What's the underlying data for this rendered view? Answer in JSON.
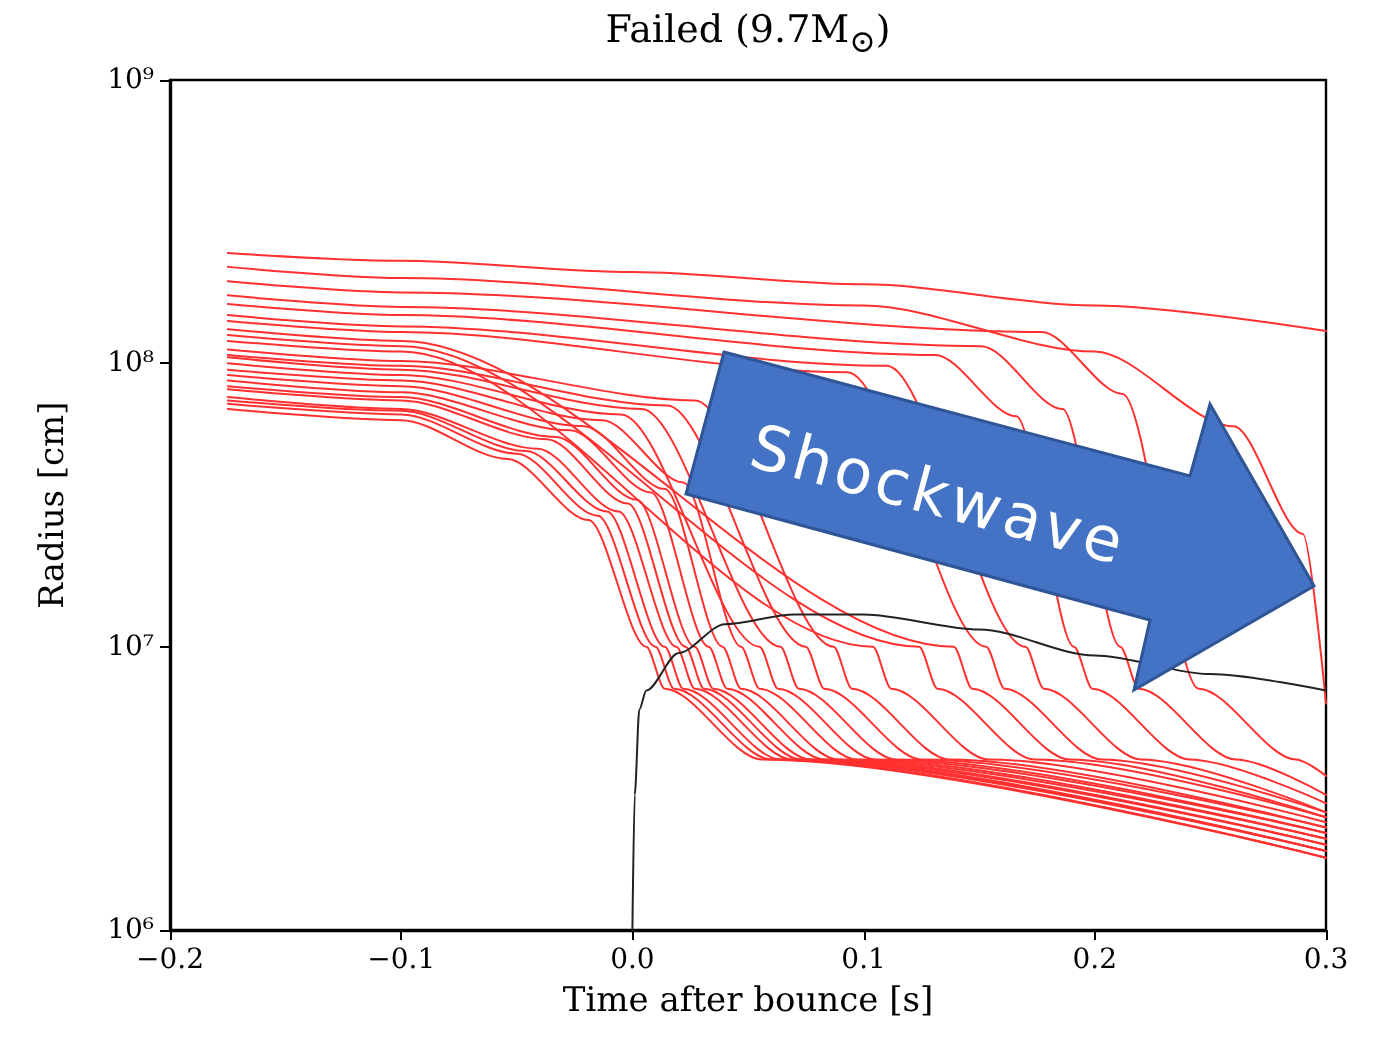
{
  "chart_data": {
    "type": "line",
    "title": "Failed (9.7M$_{⊙}$)",
    "xlabel": "Time after bounce [s]",
    "ylabel": "Radius [cm]",
    "log": "y",
    "xlim": [
      -0.2,
      0.3
    ],
    "xticks": [
      {
        "value": -0.2,
        "label": "−0.2"
      },
      {
        "value": -0.1,
        "label": "−0.1"
      },
      {
        "value": 0,
        "label": "0.0"
      },
      0.1,
      0.2,
      0.3
    ],
    "ylim": [
      1000000,
      1000000000
    ],
    "yticks": [
      {
        "value": 1000000,
        "label": "10⁶"
      },
      {
        "value": 10000000,
        "label": "10⁷"
      },
      {
        "value": 100000000,
        "label": "10⁸"
      },
      {
        "value": 1000000000,
        "label": "10⁹"
      }
    ],
    "annotations": [
      "Shockwave"
    ],
    "series": [
      {
        "color": "#ff3030",
        "x": [
          -0.175,
          -0.1,
          -0.054,
          -0.019,
          0.006,
          0.014,
          0.056,
          0.3
        ],
        "values": [
          69000000,
          63000000,
          46000000,
          28000000,
          10000000,
          7100000,
          4000000,
          1800000
        ]
      },
      {
        "color": "#ff3030",
        "x": [
          -0.175,
          -0.1,
          -0.05,
          -0.015,
          0.01,
          0.018,
          0.06,
          0.3
        ],
        "values": [
          72000000,
          66000000,
          48000000,
          29000000,
          10000000,
          7100000,
          4000000,
          1800000
        ]
      },
      {
        "color": "#ff3030",
        "x": [
          -0.175,
          -0.1,
          -0.046,
          -0.011,
          0.014,
          0.022,
          0.064,
          0.3
        ],
        "values": [
          74000000,
          68000000,
          49000000,
          30000000,
          10000000,
          7100000,
          4000000,
          1900000
        ]
      },
      {
        "color": "#ff3030",
        "x": [
          -0.175,
          -0.1,
          -0.041,
          -0.006,
          0.019,
          0.027,
          0.069,
          0.3
        ],
        "values": [
          76000000,
          69000000,
          50000000,
          30000000,
          10000000,
          7100000,
          4000000,
          1900000
        ]
      },
      {
        "color": "#ff3030",
        "x": [
          -0.175,
          -0.1,
          -0.037,
          -0.002,
          0.023,
          0.031,
          0.073,
          0.3
        ],
        "values": [
          81000000,
          74000000,
          54000000,
          32000000,
          10000000,
          7100000,
          4000000,
          1900000
        ]
      },
      {
        "color": "#ff3030",
        "x": [
          -0.175,
          -0.1,
          -0.033,
          0.002,
          0.027,
          0.035,
          0.077,
          0.3
        ],
        "values": [
          83000000,
          76000000,
          55000000,
          33000000,
          10000000,
          7100000,
          4000000,
          2000000
        ]
      },
      {
        "color": "#ff3030",
        "x": [
          -0.175,
          -0.1,
          -0.027,
          0.008,
          0.033,
          0.041,
          0.083,
          0.3
        ],
        "values": [
          87000000,
          79000000,
          58000000,
          35000000,
          10000000,
          7100000,
          4000000,
          2000000
        ]
      },
      {
        "color": "#ff3030",
        "x": [
          -0.175,
          -0.1,
          -0.021,
          0.014,
          0.039,
          0.047,
          0.089,
          0.3
        ],
        "values": [
          91000000,
          83000000,
          60000000,
          36000000,
          10000000,
          7100000,
          4000000,
          2100000
        ]
      },
      {
        "color": "#ff3030",
        "x": [
          -0.175,
          -0.1,
          -0.013,
          0.022,
          0.047,
          0.055,
          0.097,
          0.3
        ],
        "values": [
          95000000,
          87000000,
          63000000,
          38000000,
          10000000,
          7100000,
          4000000,
          2100000
        ]
      },
      {
        "color": "#ff3030",
        "x": [
          -0.175,
          -0.1,
          -0.005,
          0.03,
          0.055,
          0.063,
          0.105,
          0.3
        ],
        "values": [
          100000000,
          91000000,
          66000000,
          null,
          10000000,
          7100000,
          4000000,
          2200000
        ]
      },
      {
        "color": "#ff3030",
        "x": [
          -0.175,
          -0.1,
          0.004,
          0.039,
          0.064,
          0.072,
          0.114,
          0.3
        ],
        "values": [
          105000000,
          95000000,
          69000000,
          null,
          10000000,
          7100000,
          4000000,
          2200000
        ]
      },
      {
        "color": "#ff3030",
        "x": [
          -0.175,
          -0.1,
          0.015,
          0.05,
          0.075,
          0.083,
          0.125,
          0.3
        ],
        "values": [
          107000000,
          98000000,
          71000000,
          null,
          10000000,
          7100000,
          4000000,
          2300000
        ]
      },
      {
        "color": "#ff3030",
        "x": [
          -0.175,
          -0.1,
          0.027,
          0.062,
          0.087,
          0.095,
          0.137,
          0.3
        ],
        "values": [
          112000000,
          102000000,
          74000000,
          null,
          10000000,
          7100000,
          4000000,
          2300000
        ]
      },
      {
        "color": "#ff3030",
        "x": [
          -0.175,
          -0.1,
          0.044,
          0.079,
          0.104,
          0.112,
          0.154,
          0.3
        ],
        "values": [
          120000000,
          110000000,
          null,
          null,
          10000000,
          7100000,
          4000000,
          2400000
        ]
      },
      {
        "color": "#ff3030",
        "x": [
          -0.175,
          -0.1,
          0.064,
          0.099,
          0.124,
          0.132,
          0.174,
          0.3
        ],
        "values": [
          126000000,
          115000000,
          null,
          null,
          10000000,
          7100000,
          4000000,
          2500000
        ]
      },
      {
        "color": "#ff3030",
        "x": [
          -0.175,
          -0.1,
          0.079,
          0.114,
          0.139,
          0.147,
          0.189,
          0.3
        ],
        "values": [
          132000000,
          120000000,
          null,
          null,
          10000000,
          7100000,
          4000000,
          2500000
        ]
      },
      {
        "color": "#ff3030",
        "x": [
          -0.175,
          -0.1,
          0.093,
          0.128,
          0.153,
          0.161,
          0.203,
          0.3
        ],
        "values": [
          141000000,
          129000000,
          93000000,
          null,
          10000000,
          7100000,
          4000000,
          2600000
        ]
      },
      {
        "color": "#ff3030",
        "x": [
          -0.175,
          -0.1,
          0.11,
          0.145,
          0.17,
          0.178,
          0.22,
          0.3
        ],
        "values": [
          148000000,
          135000000,
          98000000,
          null,
          10000000,
          7100000,
          4000000,
          2600000
        ]
      },
      {
        "color": "#ff3030",
        "x": [
          -0.175,
          -0.1,
          0.131,
          0.166,
          0.191,
          0.199,
          0.241,
          0.3
        ],
        "values": [
          162000000,
          148000000,
          107000000,
          65000000,
          10000000,
          7100000,
          4000000,
          2800000
        ]
      },
      {
        "color": "#ff3030",
        "x": [
          -0.175,
          -0.1,
          0.151,
          0.186,
          0.211,
          0.219,
          0.261,
          0.3
        ],
        "values": [
          174000000,
          158000000,
          115000000,
          69000000,
          10000000,
          7100000,
          4000000,
          3000000
        ]
      },
      {
        "color": "#ff3030",
        "x": [
          -0.175,
          -0.1,
          0.177,
          0.212,
          0.237,
          0.245,
          0.287,
          0.3
        ],
        "values": [
          195000000,
          178000000,
          129000000,
          78000000,
          null,
          7100000,
          4000000,
          3500000
        ]
      },
      {
        "color": "#ff3030",
        "x": [
          -0.175,
          -0.1,
          0.1,
          0.2,
          0.26,
          0.29,
          0.3
        ],
        "values": [
          219000000,
          200000000,
          160000000,
          110000000,
          60000000,
          25000000,
          6300000
        ]
      },
      {
        "color": "#ff3030",
        "x": [
          -0.175,
          -0.1,
          0,
          0.1,
          0.2,
          0.3
        ],
        "values": [
          245000000,
          230000000,
          210000000,
          190000000,
          160000000,
          130000000
        ]
      },
      {
        "color": "#222222",
        "x": [
          0,
          0.001,
          0.003,
          0.006,
          0.02,
          0.04,
          0.07,
          0.1,
          0.15,
          0.2,
          0.25,
          0.3
        ],
        "values": [
          1000000,
          3000000,
          6000000,
          7000000,
          9500000,
          12000000,
          13000000,
          13000000,
          11500000,
          9300000,
          8000000,
          7000000
        ]
      }
    ]
  }
}
